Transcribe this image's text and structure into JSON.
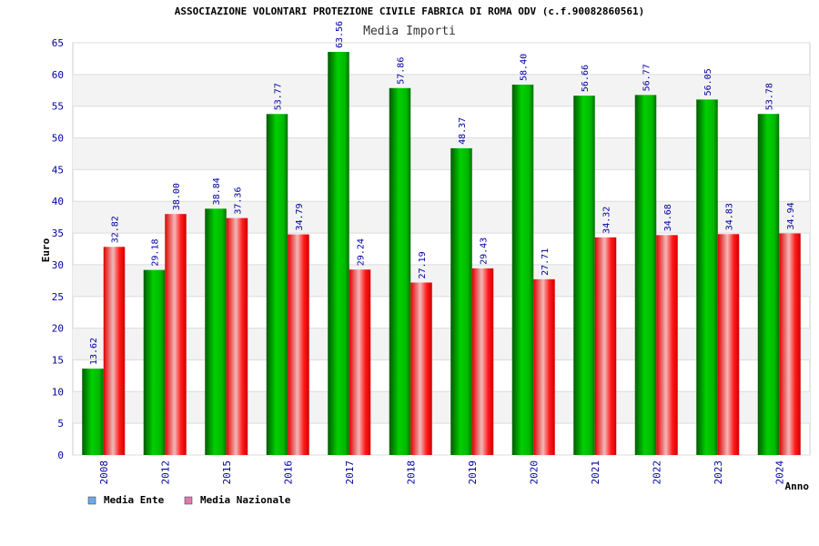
{
  "chart_data": {
    "type": "bar",
    "title": "ASSOCIAZIONE VOLONTARI PROTEZIONE CIVILE FABRICA DI ROMA ODV (c.f.90082860561)",
    "subtitle": "Media Importi",
    "xlabel": "Anno",
    "ylabel": "Euro",
    "ylim": [
      0,
      65
    ],
    "yticks": [
      0,
      5,
      10,
      15,
      20,
      25,
      30,
      35,
      40,
      45,
      50,
      55,
      60,
      65
    ],
    "grid": true,
    "legend_position": "bottom-left",
    "categories": [
      "2008",
      "2012",
      "2015",
      "2016",
      "2017",
      "2018",
      "2019",
      "2020",
      "2021",
      "2022",
      "2023",
      "2024"
    ],
    "series": [
      {
        "name": "Media Ente",
        "color": "#00c000",
        "legend_color": "#6fa8e8",
        "values": [
          13.62,
          29.18,
          38.84,
          53.77,
          63.56,
          57.86,
          48.37,
          58.4,
          56.66,
          56.77,
          56.05,
          53.78
        ],
        "labels": [
          "13.62",
          "29.18",
          "38.84",
          "53.77",
          "63.56",
          "57.86",
          "48.37",
          "58.40",
          "56.66",
          "56.77",
          "56.05",
          "53.78"
        ]
      },
      {
        "name": "Media Nazionale",
        "color": "#ff0000",
        "legend_color": "#e07ab0",
        "values": [
          32.82,
          38.0,
          37.36,
          34.79,
          29.24,
          27.19,
          29.43,
          27.71,
          34.32,
          34.68,
          34.83,
          34.94
        ],
        "labels": [
          "32.82",
          "38.00",
          "37.36",
          "34.79",
          "29.24",
          "27.19",
          "29.43",
          "27.71",
          "34.32",
          "34.68",
          "34.83",
          "34.94"
        ]
      }
    ]
  }
}
